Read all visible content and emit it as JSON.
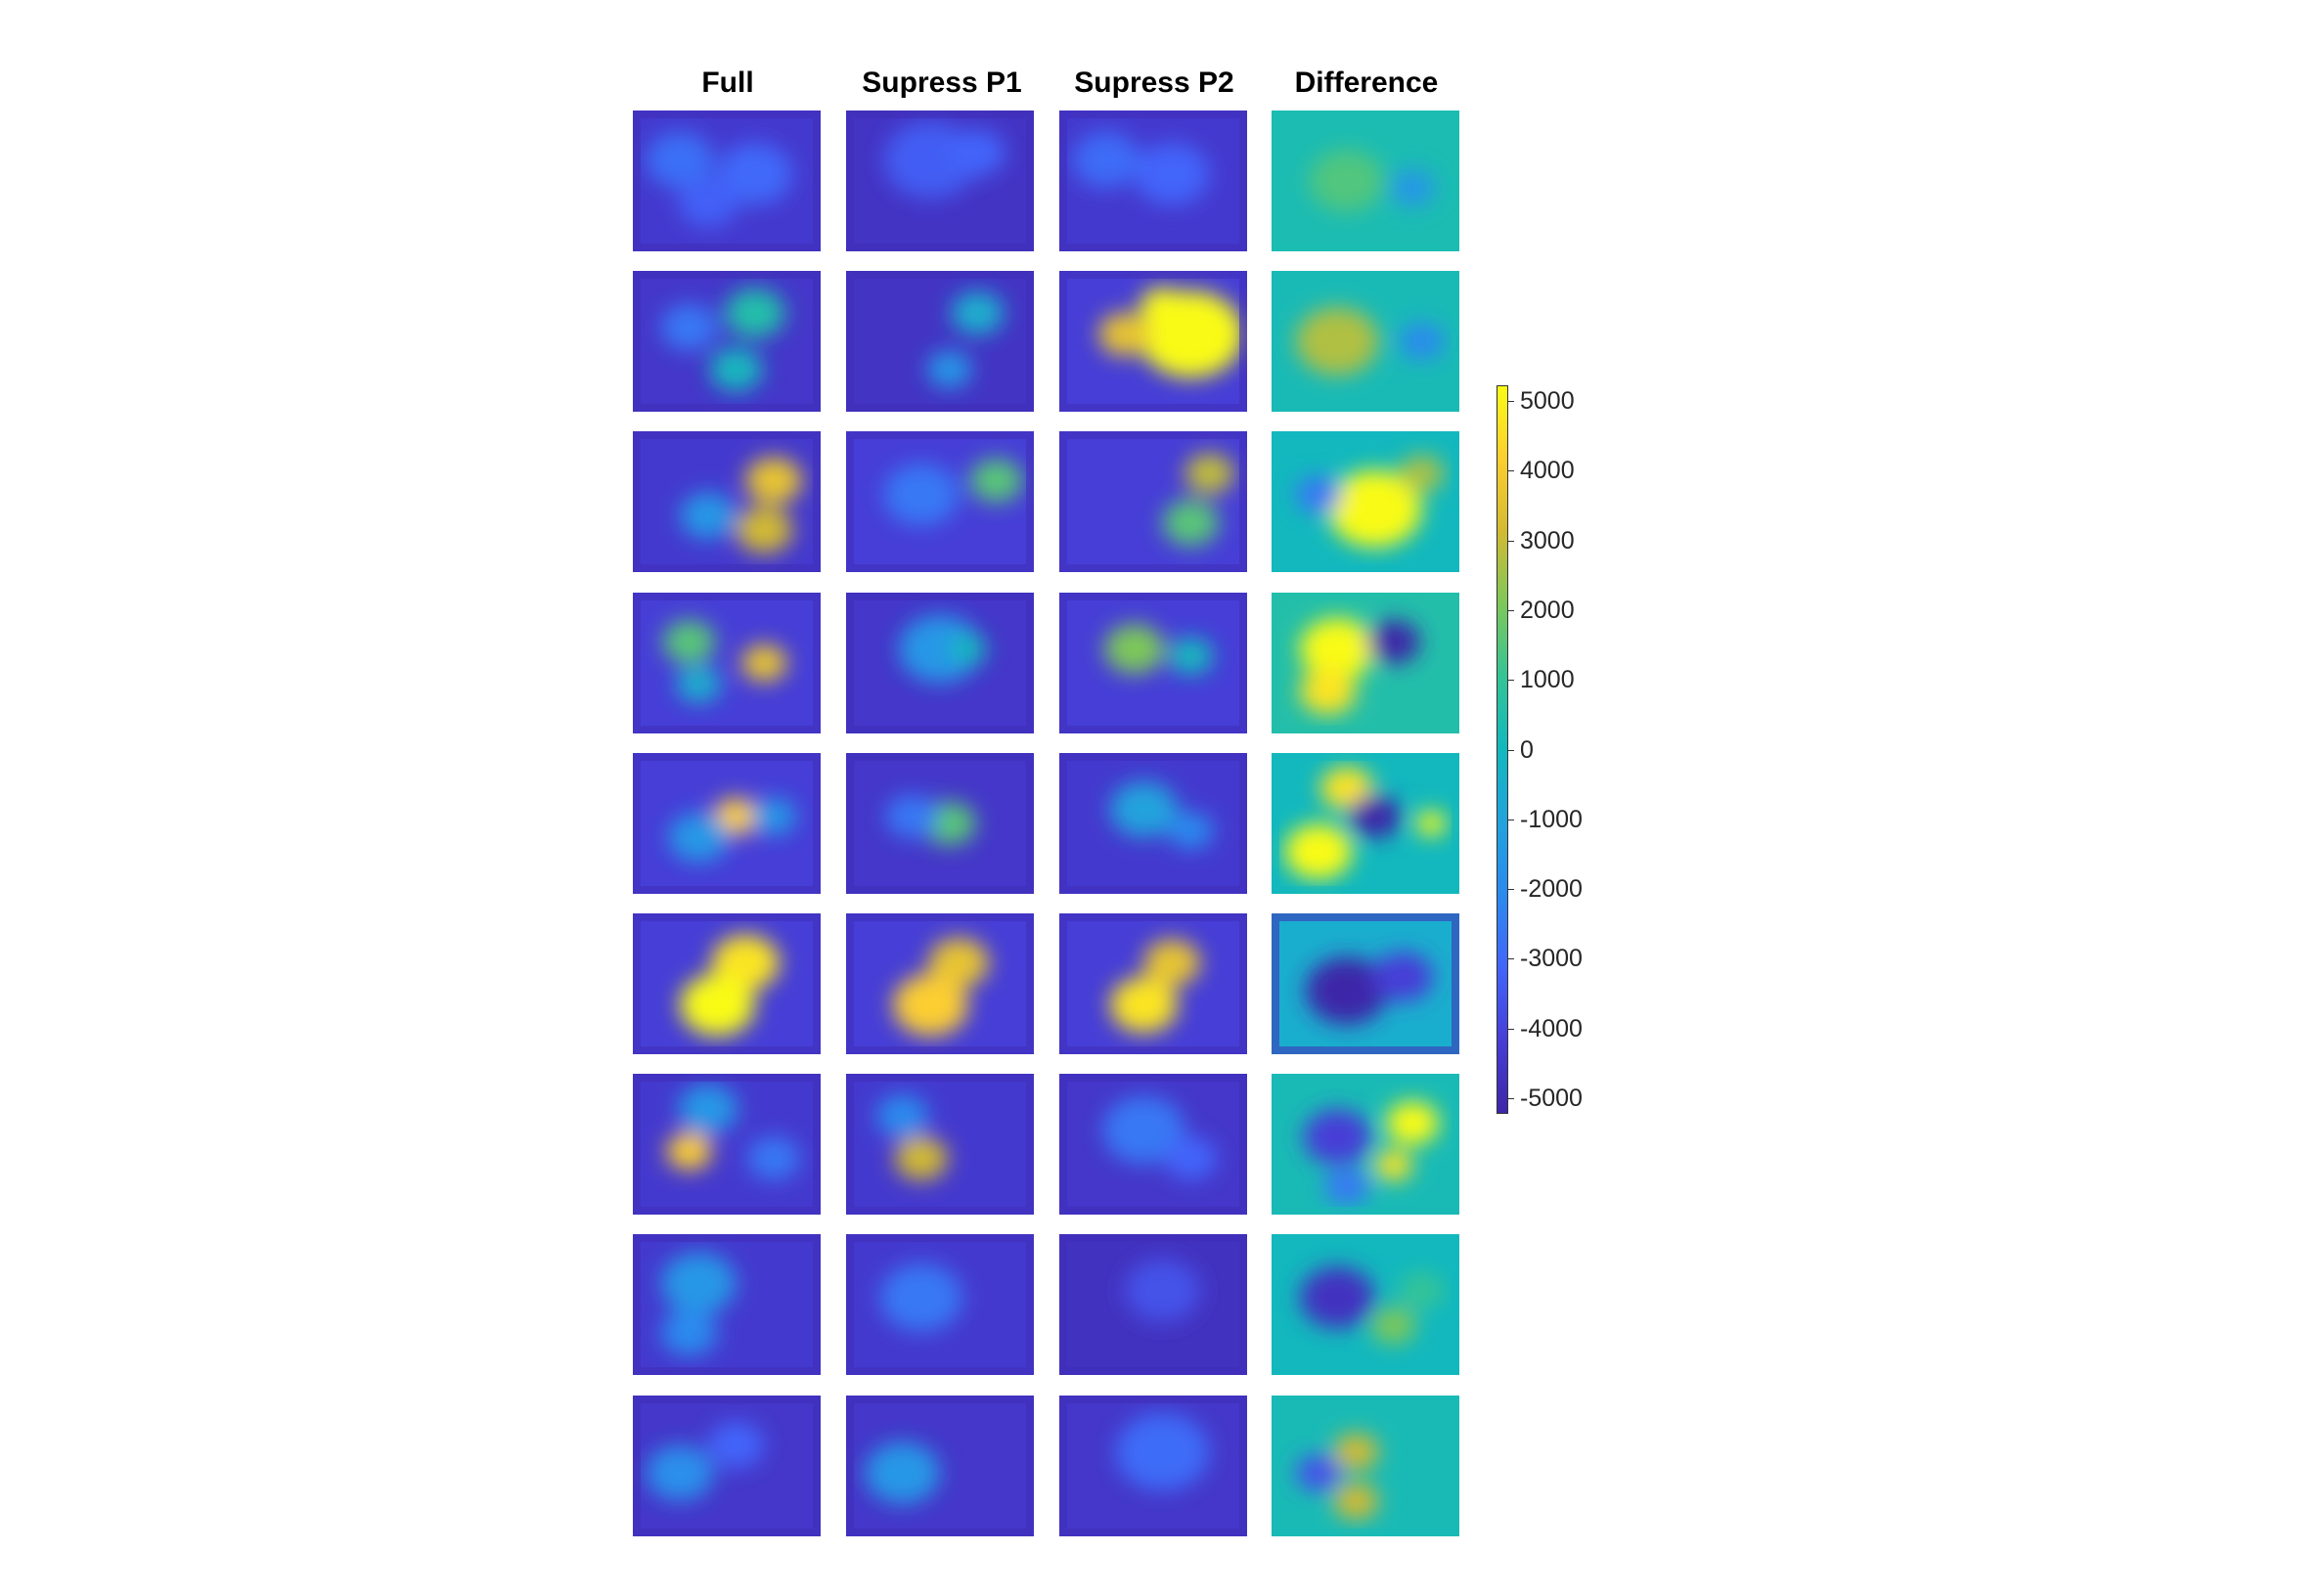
{
  "chart_data": {
    "type": "heatmap",
    "columns": [
      "Full",
      "Supress P1",
      "Supress P2",
      "Difference"
    ],
    "rows": 9,
    "colormap": "parula",
    "colorbar": {
      "min": -5000,
      "max": 5000,
      "ticks": [
        5000,
        4000,
        3000,
        2000,
        1000,
        0,
        -1000,
        -2000,
        -3000,
        -4000,
        -5000
      ],
      "tick_labels": [
        "5000",
        "4000",
        "3000",
        "2000",
        "1000",
        "0",
        "-1000",
        "-2000",
        "-3000",
        "-4000",
        "-5000"
      ],
      "placement": "right"
    },
    "panels": [
      {
        "row": 1,
        "col": "Full",
        "background": -4200,
        "blobs": [
          [
            0.25,
            0.35,
            0.18,
            -2700
          ],
          [
            0.65,
            0.45,
            0.2,
            -2900
          ],
          [
            0.4,
            0.65,
            0.16,
            -3100
          ]
        ]
      },
      {
        "row": 1,
        "col": "Supress P1",
        "background": -4400,
        "blobs": [
          [
            0.45,
            0.35,
            0.25,
            -3200
          ],
          [
            0.7,
            0.3,
            0.15,
            -3000
          ]
        ]
      },
      {
        "row": 1,
        "col": "Supress P2",
        "background": -4200,
        "blobs": [
          [
            0.25,
            0.35,
            0.18,
            -2800
          ],
          [
            0.6,
            0.45,
            0.2,
            -3000
          ]
        ]
      },
      {
        "row": 1,
        "col": "Difference",
        "background": 300,
        "blobs": [
          [
            0.4,
            0.5,
            0.2,
            1400
          ],
          [
            0.75,
            0.55,
            0.12,
            -1500
          ]
        ]
      },
      {
        "row": 2,
        "col": "Full",
        "background": -4300,
        "blobs": [
          [
            0.65,
            0.3,
            0.16,
            500
          ],
          [
            0.55,
            0.7,
            0.14,
            0
          ],
          [
            0.3,
            0.4,
            0.15,
            -2500
          ]
        ]
      },
      {
        "row": 2,
        "col": "Supress P1",
        "background": -4400,
        "blobs": [
          [
            0.7,
            0.3,
            0.14,
            -500
          ],
          [
            0.55,
            0.7,
            0.12,
            -1500
          ]
        ]
      },
      {
        "row": 2,
        "col": "Supress P2",
        "background": -4000,
        "blobs": [
          [
            0.7,
            0.45,
            0.28,
            5500
          ],
          [
            0.35,
            0.45,
            0.14,
            3500
          ],
          [
            0.55,
            0.25,
            0.12,
            5000
          ]
        ]
      },
      {
        "row": 2,
        "col": "Difference",
        "background": 200,
        "blobs": [
          [
            0.35,
            0.5,
            0.22,
            2600
          ],
          [
            0.8,
            0.5,
            0.12,
            -2000
          ]
        ]
      },
      {
        "row": 3,
        "col": "Full",
        "background": -4200,
        "blobs": [
          [
            0.75,
            0.35,
            0.15,
            3500
          ],
          [
            0.7,
            0.7,
            0.15,
            3000
          ],
          [
            0.4,
            0.6,
            0.15,
            -1500
          ]
        ]
      },
      {
        "row": 3,
        "col": "Supress P1",
        "background": -4000,
        "blobs": [
          [
            0.8,
            0.35,
            0.14,
            1500
          ],
          [
            0.4,
            0.45,
            0.2,
            -2500
          ]
        ]
      },
      {
        "row": 3,
        "col": "Supress P2",
        "background": -4000,
        "blobs": [
          [
            0.8,
            0.3,
            0.13,
            2800
          ],
          [
            0.7,
            0.65,
            0.15,
            1500
          ]
        ]
      },
      {
        "row": 3,
        "col": "Difference",
        "background": 0,
        "blobs": [
          [
            0.55,
            0.55,
            0.25,
            5500
          ],
          [
            0.8,
            0.3,
            0.12,
            2500
          ],
          [
            0.25,
            0.45,
            0.12,
            -2500
          ]
        ]
      },
      {
        "row": 4,
        "col": "Full",
        "background": -4000,
        "blobs": [
          [
            0.3,
            0.35,
            0.14,
            1500
          ],
          [
            0.7,
            0.5,
            0.12,
            3500
          ],
          [
            0.35,
            0.65,
            0.12,
            -500
          ]
        ]
      },
      {
        "row": 4,
        "col": "Supress P1",
        "background": -4300,
        "blobs": [
          [
            0.5,
            0.4,
            0.22,
            -1500
          ],
          [
            0.65,
            0.4,
            0.1,
            0
          ]
        ]
      },
      {
        "row": 4,
        "col": "Supress P2",
        "background": -4000,
        "blobs": [
          [
            0.4,
            0.4,
            0.16,
            2000
          ],
          [
            0.7,
            0.45,
            0.12,
            0
          ]
        ]
      },
      {
        "row": 4,
        "col": "Difference",
        "background": 500,
        "blobs": [
          [
            0.35,
            0.4,
            0.2,
            5000
          ],
          [
            0.3,
            0.7,
            0.15,
            4500
          ],
          [
            0.65,
            0.35,
            0.14,
            -5000
          ]
        ]
      },
      {
        "row": 5,
        "col": "Full",
        "background": -4000,
        "blobs": [
          [
            0.55,
            0.45,
            0.12,
            4000
          ],
          [
            0.35,
            0.6,
            0.16,
            -1500
          ],
          [
            0.75,
            0.45,
            0.12,
            -1500
          ]
        ]
      },
      {
        "row": 5,
        "col": "Supress P1",
        "background": -4300,
        "blobs": [
          [
            0.55,
            0.5,
            0.14,
            1500
          ],
          [
            0.35,
            0.45,
            0.14,
            -2500
          ]
        ]
      },
      {
        "row": 5,
        "col": "Supress P2",
        "background": -4200,
        "blobs": [
          [
            0.45,
            0.4,
            0.18,
            -1000
          ],
          [
            0.7,
            0.55,
            0.12,
            -2000
          ]
        ]
      },
      {
        "row": 5,
        "col": "Difference",
        "background": 0,
        "blobs": [
          [
            0.25,
            0.7,
            0.18,
            5000
          ],
          [
            0.4,
            0.25,
            0.14,
            4500
          ],
          [
            0.85,
            0.5,
            0.08,
            5000
          ],
          [
            0.55,
            0.45,
            0.14,
            -5000
          ]
        ]
      },
      {
        "row": 6,
        "col": "Full",
        "background": -4000,
        "blobs": [
          [
            0.6,
            0.35,
            0.18,
            4500
          ],
          [
            0.45,
            0.65,
            0.2,
            5500
          ]
        ]
      },
      {
        "row": 6,
        "col": "Supress P1",
        "background": -4000,
        "blobs": [
          [
            0.6,
            0.35,
            0.16,
            3500
          ],
          [
            0.45,
            0.65,
            0.2,
            4000
          ]
        ]
      },
      {
        "row": 6,
        "col": "Supress P2",
        "background": -4000,
        "blobs": [
          [
            0.6,
            0.35,
            0.15,
            3500
          ],
          [
            0.45,
            0.65,
            0.18,
            4500
          ]
        ]
      },
      {
        "row": 6,
        "col": "Difference",
        "background": -500,
        "blobs": [
          [
            0.4,
            0.55,
            0.22,
            -5500
          ],
          [
            0.7,
            0.45,
            0.16,
            -4000
          ]
        ]
      },
      {
        "row": 7,
        "col": "Full",
        "background": -4200,
        "blobs": [
          [
            0.3,
            0.55,
            0.12,
            4000
          ],
          [
            0.4,
            0.25,
            0.16,
            -1500
          ],
          [
            0.75,
            0.6,
            0.14,
            -2500
          ]
        ]
      },
      {
        "row": 7,
        "col": "Supress P1",
        "background": -4200,
        "blobs": [
          [
            0.4,
            0.6,
            0.14,
            3000
          ],
          [
            0.3,
            0.3,
            0.14,
            -2000
          ]
        ]
      },
      {
        "row": 7,
        "col": "Supress P2",
        "background": -4300,
        "blobs": [
          [
            0.45,
            0.4,
            0.22,
            -2500
          ],
          [
            0.7,
            0.6,
            0.14,
            -3000
          ]
        ]
      },
      {
        "row": 7,
        "col": "Difference",
        "background": 200,
        "blobs": [
          [
            0.75,
            0.35,
            0.14,
            5000
          ],
          [
            0.65,
            0.65,
            0.1,
            4500
          ],
          [
            0.35,
            0.45,
            0.18,
            -4000
          ],
          [
            0.4,
            0.8,
            0.12,
            -2500
          ]
        ]
      },
      {
        "row": 8,
        "col": "Full",
        "background": -4200,
        "blobs": [
          [
            0.35,
            0.35,
            0.2,
            -1500
          ],
          [
            0.3,
            0.7,
            0.15,
            -2000
          ]
        ]
      },
      {
        "row": 8,
        "col": "Supress P1",
        "background": -4200,
        "blobs": [
          [
            0.4,
            0.45,
            0.22,
            -2500
          ]
        ]
      },
      {
        "row": 8,
        "col": "Supress P2",
        "background": -4500,
        "blobs": [
          [
            0.55,
            0.4,
            0.2,
            -3500
          ]
        ]
      },
      {
        "row": 8,
        "col": "Difference",
        "background": 0,
        "blobs": [
          [
            0.35,
            0.45,
            0.2,
            -4500
          ],
          [
            0.65,
            0.65,
            0.12,
            2000
          ],
          [
            0.8,
            0.4,
            0.12,
            1000
          ]
        ]
      },
      {
        "row": 9,
        "col": "Full",
        "background": -4300,
        "blobs": [
          [
            0.25,
            0.55,
            0.18,
            -1800
          ],
          [
            0.55,
            0.35,
            0.15,
            -3000
          ]
        ]
      },
      {
        "row": 9,
        "col": "Supress P1",
        "background": -4300,
        "blobs": [
          [
            0.3,
            0.55,
            0.2,
            -1500
          ]
        ]
      },
      {
        "row": 9,
        "col": "Supress P2",
        "background": -4300,
        "blobs": [
          [
            0.55,
            0.4,
            0.25,
            -2800
          ]
        ]
      },
      {
        "row": 9,
        "col": "Difference",
        "background": 200,
        "blobs": [
          [
            0.45,
            0.4,
            0.12,
            3000
          ],
          [
            0.45,
            0.75,
            0.12,
            3000
          ],
          [
            0.25,
            0.55,
            0.12,
            -3500
          ]
        ]
      }
    ]
  }
}
